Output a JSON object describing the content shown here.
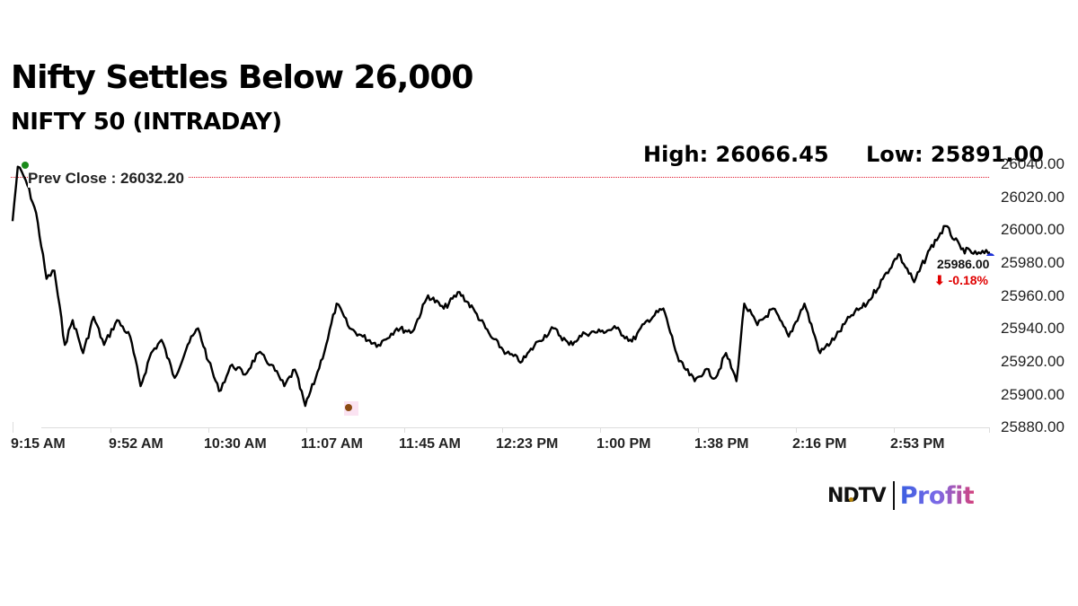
{
  "header": {
    "title": "Nifty Settles Below 26,000",
    "subtitle": "NIFTY 50 (INTRADAY)",
    "high_label": "High: 26066.45",
    "low_label": "Low: 25891.00"
  },
  "annotations": {
    "prev_close_label": "Prev Close : 26032.20",
    "last_price": "25986.00",
    "change": "⬇ -0.18%",
    "change_color": "#e00000",
    "prev_close_line_color": "#e0182d",
    "high_marker_color": "#1a8a1a",
    "low_marker_color": "#8b4a12",
    "last_marker_color": "#1c2fd6"
  },
  "logo": {
    "ndtv": "NDTV",
    "profit": "Profit",
    "dot_color": "#b8860b"
  },
  "chart_data": {
    "type": "line",
    "title": "Nifty Settles Below 26,000",
    "subtitle": "NIFTY 50 (INTRADAY)",
    "xlabel": "",
    "ylabel": "",
    "ylim": [
      25880,
      26040
    ],
    "grid": false,
    "legend": null,
    "x_tick_labels": [
      "9:15 AM",
      "9:52 AM",
      "10:30 AM",
      "11:07 AM",
      "11:45 AM",
      "12:23 PM",
      "1:00 PM",
      "1:38 PM",
      "2:16 PM",
      "2:53 PM"
    ],
    "y_tick_labels": [
      "26040.00",
      "26020.00",
      "26000.00",
      "25980.00",
      "25960.00",
      "25940.00",
      "25920.00",
      "25900.00",
      "25880.00"
    ],
    "y_ticks": [
      26040,
      26020,
      26000,
      25980,
      25960,
      25940,
      25920,
      25900,
      25880
    ],
    "high": 26066.45,
    "low": 25891.0,
    "prev_close": 26032.2,
    "last": 25986.0,
    "change_pct": -0.18,
    "series": [
      {
        "name": "NIFTY 50",
        "x": [
          "9:15",
          "9:17",
          "9:20",
          "9:24",
          "9:28",
          "9:31",
          "9:35",
          "9:38",
          "9:42",
          "9:46",
          "9:50",
          "9:55",
          "10:00",
          "10:04",
          "10:08",
          "10:12",
          "10:17",
          "10:22",
          "10:26",
          "10:30",
          "10:34",
          "10:39",
          "10:44",
          "10:49",
          "10:54",
          "10:59",
          "11:03",
          "11:07",
          "11:11",
          "11:15",
          "11:19",
          "11:24",
          "11:29",
          "11:35",
          "11:42",
          "11:48",
          "11:54",
          "12:00",
          "12:06",
          "12:12",
          "12:18",
          "12:24",
          "12:30",
          "12:36",
          "12:42",
          "12:48",
          "12:54",
          "13:00",
          "13:06",
          "13:12",
          "13:18",
          "13:24",
          "13:30",
          "13:36",
          "13:40",
          "13:44",
          "13:48",
          "13:52",
          "13:55",
          "14:00",
          "14:06",
          "14:12",
          "14:18",
          "14:24",
          "14:30",
          "14:36",
          "14:42",
          "14:48",
          "14:54",
          "15:00",
          "15:06",
          "15:12",
          "15:18",
          "15:24",
          "15:29"
        ],
        "values": [
          26005,
          26038,
          26030,
          26010,
          25970,
          25975,
          25930,
          25945,
          25925,
          25947,
          25930,
          25945,
          25935,
          25905,
          25925,
          25933,
          25910,
          25930,
          25940,
          25920,
          25902,
          25918,
          25912,
          25925,
          25918,
          25905,
          25915,
          25893,
          25910,
          25930,
          25955,
          25940,
          25935,
          25930,
          25940,
          25938,
          25960,
          25952,
          25962,
          25950,
          25935,
          25925,
          25920,
          25932,
          25940,
          25930,
          25937,
          25938,
          25940,
          25932,
          25945,
          25952,
          25920,
          25908,
          25915,
          25910,
          25925,
          25908,
          25955,
          25942,
          25952,
          25935,
          25955,
          25925,
          25935,
          25948,
          25955,
          25970,
          25985,
          25968,
          25988,
          26002,
          25988,
          25985,
          25986
        ]
      }
    ]
  }
}
